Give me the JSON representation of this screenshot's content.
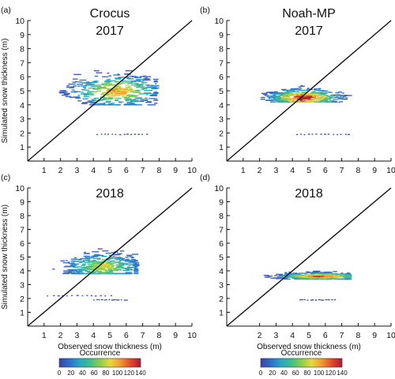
{
  "figure": {
    "colorbar": {
      "label": "Occurrence",
      "ticks": [
        "0",
        "20",
        "40",
        "60",
        "80",
        "100",
        "120",
        "140"
      ],
      "colors": [
        "#3b3fa8",
        "#2f6fc8",
        "#2aa6c2",
        "#3cbf8a",
        "#8ccc4e",
        "#e8d83c",
        "#f29a30",
        "#e04a2a",
        "#b0163a"
      ]
    },
    "panels": [
      {
        "label": "(a)",
        "title_lines": [
          "Crocus",
          "2017"
        ],
        "show_x_label": false,
        "show_y_label": true,
        "y_label": "Simulated snow thickness (m)",
        "x_label": ""
      },
      {
        "label": "(b)",
        "title_lines": [
          "Noah-MP",
          "2017"
        ],
        "show_x_label": false,
        "show_y_label": false,
        "y_label": "",
        "x_label": ""
      },
      {
        "label": "(c)",
        "title_lines": [
          "2018"
        ],
        "show_x_label": true,
        "show_y_label": true,
        "y_label": "Simulated snow thickness (m)",
        "x_label": "Observed snow thickness (m)"
      },
      {
        "label": "(d)",
        "title_lines": [
          "2018"
        ],
        "show_x_label": true,
        "show_y_label": false,
        "y_label": "",
        "x_label": "Observed snow thickness (m)"
      }
    ]
  },
  "chart_data": [
    {
      "type": "heatmap",
      "panel": "(a)",
      "title": "Crocus 2017",
      "xlim": [
        0,
        10
      ],
      "ylim": [
        0,
        10
      ],
      "x_ticks": [
        1,
        2,
        3,
        4,
        5,
        6,
        7,
        8,
        9,
        10
      ],
      "y_ticks": [
        1,
        2,
        3,
        4,
        5,
        6,
        7,
        8,
        9,
        10
      ],
      "reference_line": "1:1",
      "clusters": [
        {
          "x_range": [
            1.5,
            7.8
          ],
          "y_range": [
            4.0,
            6.6
          ],
          "peak_x": 5.4,
          "peak_y": 5.0,
          "peak_occurrence": 100
        },
        {
          "x_range": [
            4.2,
            7.2
          ],
          "y_range": [
            1.85,
            1.95
          ],
          "peak_x": 5.6,
          "peak_y": 1.9,
          "peak_occurrence": 5
        }
      ]
    },
    {
      "type": "heatmap",
      "panel": "(b)",
      "title": "Noah-MP 2017",
      "xlim": [
        0,
        10
      ],
      "ylim": [
        0,
        10
      ],
      "x_ticks": [
        1,
        2,
        3,
        4,
        5,
        6,
        7,
        8,
        9,
        10
      ],
      "y_ticks": [
        1,
        2,
        3,
        4,
        5,
        6,
        7,
        8,
        9,
        10
      ],
      "reference_line": "1:1",
      "clusters": [
        {
          "x_range": [
            2.2,
            7.8
          ],
          "y_range": [
            4.2,
            5.4
          ],
          "peak_x": 4.7,
          "peak_y": 4.5,
          "peak_occurrence": 140
        },
        {
          "x_range": [
            4.2,
            7.4
          ],
          "y_range": [
            1.85,
            1.95
          ],
          "peak_x": 5.5,
          "peak_y": 1.9,
          "peak_occurrence": 5
        }
      ]
    },
    {
      "type": "heatmap",
      "panel": "(c)",
      "title": "2018",
      "xlim": [
        0,
        10
      ],
      "ylim": [
        0,
        10
      ],
      "x_ticks": [
        1,
        2,
        3,
        4,
        5,
        6,
        7,
        8,
        9,
        10
      ],
      "y_ticks": [
        1,
        2,
        3,
        4,
        5,
        6,
        7,
        8,
        9,
        10
      ],
      "reference_line": "1:1",
      "clusters": [
        {
          "x_range": [
            1.2,
            6.6
          ],
          "y_range": [
            3.8,
            5.7
          ],
          "peak_x": 4.6,
          "peak_y": 4.3,
          "peak_occurrence": 80
        },
        {
          "x_range": [
            1.2,
            5.0
          ],
          "y_range": [
            2.15,
            2.25
          ],
          "peak_x": 3.0,
          "peak_y": 2.2,
          "peak_occurrence": 10
        },
        {
          "x_range": [
            4.0,
            6.0
          ],
          "y_range": [
            1.85,
            1.95
          ],
          "peak_x": 5.0,
          "peak_y": 1.9,
          "peak_occurrence": 5
        }
      ]
    },
    {
      "type": "heatmap",
      "panel": "(d)",
      "title": "2018",
      "xlim": [
        0,
        10
      ],
      "ylim": [
        0,
        10
      ],
      "x_ticks": [
        2,
        3,
        4,
        5,
        6,
        7,
        8,
        9,
        10
      ],
      "y_ticks": [
        1,
        2,
        3,
        4,
        5,
        6,
        7,
        8,
        9,
        10
      ],
      "reference_line": "1:1",
      "clusters": [
        {
          "x_range": [
            2.0,
            7.4
          ],
          "y_range": [
            3.4,
            4.0
          ],
          "peak_x": 5.7,
          "peak_y": 3.6,
          "peak_occurrence": 130
        },
        {
          "x_range": [
            4.4,
            6.5
          ],
          "y_range": [
            1.85,
            1.95
          ],
          "peak_x": 5.2,
          "peak_y": 1.9,
          "peak_occurrence": 5
        }
      ]
    }
  ]
}
